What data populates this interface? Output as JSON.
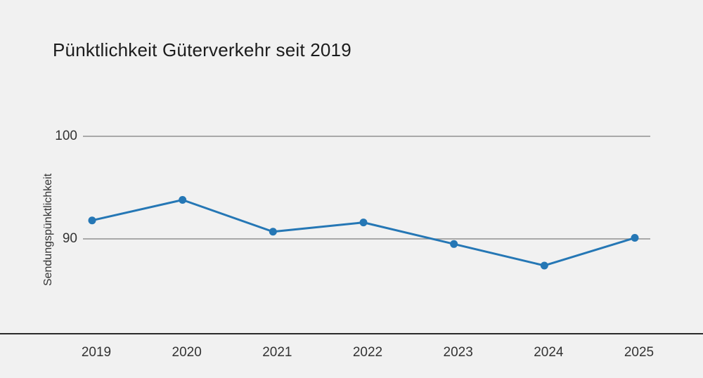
{
  "title": "Pünktlichkeit Güterverkehr seit 2019",
  "y_axis": {
    "label": "Sendungspünktlichkeit",
    "ticks": [
      "100",
      "90"
    ]
  },
  "chart_data": {
    "type": "line",
    "title": "Pünktlichkeit Güterverkehr seit 2019",
    "ylabel": "Sendungspünktlichkeit",
    "xlabel": "",
    "categories": [
      "2019",
      "2020",
      "2021",
      "2022",
      "2023",
      "2024",
      "2025"
    ],
    "series": [
      {
        "name": "Sendungspünktlichkeit",
        "values": [
          91.8,
          93.8,
          90.7,
          91.6,
          89.5,
          87.4,
          90.1
        ]
      }
    ],
    "y_gridlines": [
      100,
      90
    ],
    "ylim": [
      84.8,
      104.4
    ],
    "grid_on": true,
    "legend_position": "none",
    "colors": {
      "line": "#2577b5",
      "grid": "#919191",
      "axis": "#2b2b2b",
      "background": "#f1f1f1",
      "text": "#333333",
      "title_text": "#1c1c1c"
    }
  }
}
